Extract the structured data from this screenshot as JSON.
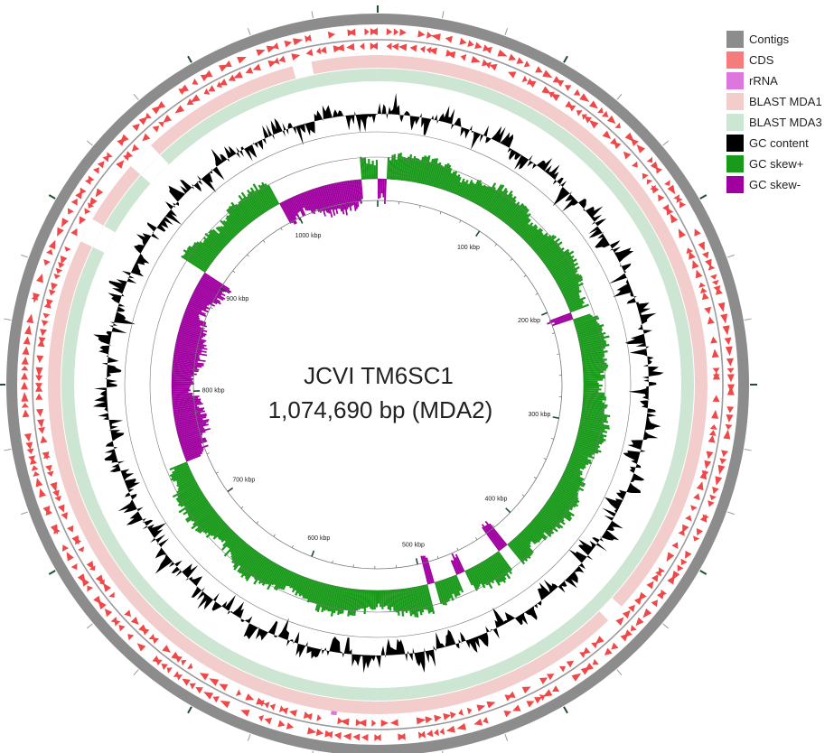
{
  "title": {
    "line1": "JCVI TM6SC1",
    "line2": "1,074,690 bp (MDA2)"
  },
  "genome_length_bp": 1074690,
  "scale_labels": [
    "100 kbp",
    "200 kbp",
    "300 kbp",
    "400 kbp",
    "500 kbp",
    "600 kbp",
    "700 kbp",
    "800 kbp",
    "900 kbp",
    "1000 kbp"
  ],
  "legend": [
    {
      "label": "Contigs",
      "color": "#8c8c8c"
    },
    {
      "label": "CDS",
      "color": "#f47c7c"
    },
    {
      "label": "rRNA",
      "color": "#dd77dd"
    },
    {
      "label": "BLAST MDA1",
      "color": "#f3cccc"
    },
    {
      "label": "BLAST MDA3",
      "color": "#cde6d4"
    },
    {
      "label": "GC content",
      "color": "#000000"
    },
    {
      "label": "GC skew+",
      "color": "#1a9a1a"
    },
    {
      "label": "GC skew-",
      "color": "#a000a0"
    }
  ],
  "colors": {
    "contig": "#8c8c8c",
    "cds": "#f04848",
    "rrna": "#dd77dd",
    "blast_mda1": "#f3cccc",
    "blast_mda3": "#cde6d4",
    "gc_content": "#000000",
    "gc_skew_pos": "#1a9a1a",
    "gc_skew_neg": "#a000a0",
    "backbone": "#9a9a9a",
    "tick_major": "#1f4f2f"
  },
  "gc_skew_negative_regions_kbp": [
    [
      740,
      905
    ],
    [
      990,
      1061
    ],
    [
      1075,
      1082
    ],
    [
      208,
      214
    ],
    [
      421,
      430
    ],
    [
      462,
      470
    ],
    [
      490,
      495
    ]
  ],
  "blast_gap_regions_kbp": [
    [
      883,
      896
    ],
    [
      930,
      945
    ],
    [
      1030,
      1040
    ],
    [
      395,
      405
    ]
  ],
  "rrna_position_kbp": [
    560
  ]
}
